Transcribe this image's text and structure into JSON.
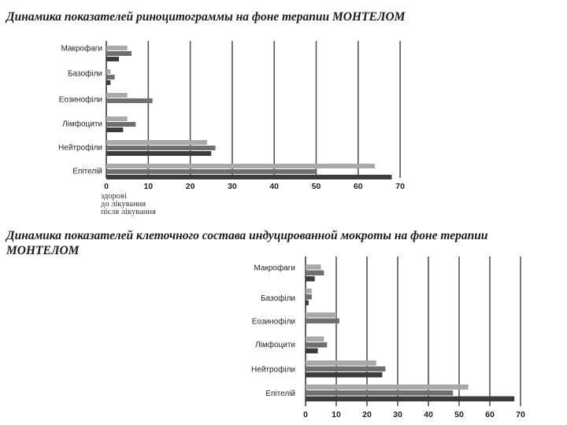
{
  "slide": {
    "title_top": "Динамика показателей риноцитограммы на фоне терапии МОНТЕЛОМ",
    "title_bottom": "Динамика показателей клеточного состава индуцированной мокроты на фоне терапии МОНТЕЛОМ"
  },
  "colors": {
    "series": [
      "#a9a9a9",
      "#6f6f6f",
      "#3c3c3c"
    ],
    "grid": "#555555"
  },
  "chart_data": [
    {
      "type": "bar",
      "orientation": "horizontal",
      "categories": [
        "Макрофаги",
        "Базофіли",
        "Еозинофіли",
        "Лімфоцити",
        "Нейтрофіли",
        "Епітелій"
      ],
      "series": [
        {
          "name": "здорові",
          "values": [
            5,
            1,
            5,
            5,
            24,
            64
          ]
        },
        {
          "name": "до лікування",
          "values": [
            6,
            2,
            11,
            7,
            26,
            50
          ]
        },
        {
          "name": "після лікування",
          "values": [
            3,
            1,
            0,
            4,
            25,
            68
          ]
        }
      ],
      "xticks": [
        "0",
        "10",
        "20",
        "30",
        "40",
        "50",
        "60",
        "70"
      ],
      "xlim": [
        0,
        70
      ],
      "legend_position": "bottom-left",
      "grid": true
    },
    {
      "type": "bar",
      "orientation": "horizontal",
      "categories": [
        "Макрофаги",
        "Базофіли",
        "Еозинофіли",
        "Лімфоцити",
        "Нейтрофіли",
        "Епітелій"
      ],
      "series": [
        {
          "values": [
            5,
            2,
            10,
            6,
            23,
            53
          ]
        },
        {
          "values": [
            6,
            2,
            11,
            7,
            26,
            48
          ]
        },
        {
          "values": [
            3,
            1,
            0,
            4,
            25,
            68
          ]
        }
      ],
      "xticks": [
        "0",
        "10",
        "20",
        "30",
        "40",
        "50",
        "60",
        "70"
      ],
      "xlim": [
        0,
        70
      ],
      "grid": true
    }
  ]
}
